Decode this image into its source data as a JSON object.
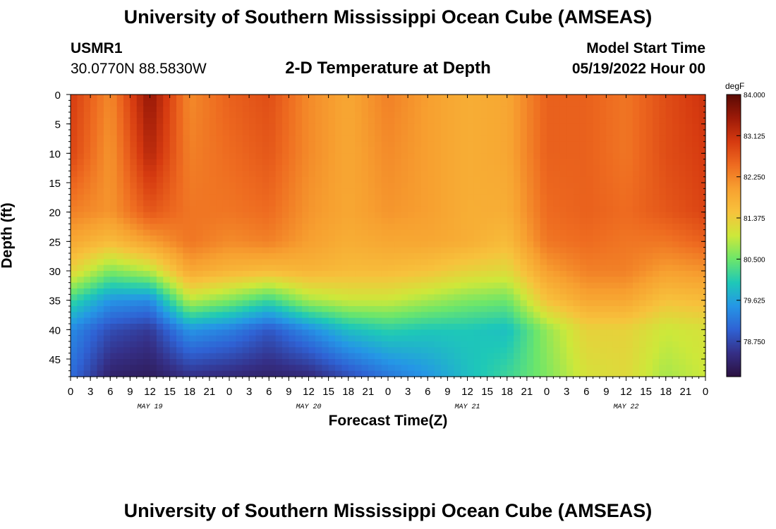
{
  "header": {
    "title": "University of Southern Mississippi Ocean Cube (AMSEAS)",
    "station": "USMR1",
    "location": "30.0770N  88.5830W",
    "subtitle": "2-D Temperature at Depth",
    "model_start_label": "Model Start Time",
    "model_start_value": "05/19/2022 Hour 00"
  },
  "footer": {
    "title": "University of Southern Mississippi Ocean Cube (AMSEAS)"
  },
  "colors": {
    "scale": [
      "#2b1140",
      "#352f86",
      "#2f62d4",
      "#2596e6",
      "#1ec8b8",
      "#6de66a",
      "#cde83a",
      "#f7c23c",
      "#f7a030",
      "#ee6b20",
      "#d63a10",
      "#9c1a08",
      "#5a0a04"
    ]
  },
  "chart_data": {
    "type": "heatmap",
    "title": "2-D Temperature at Depth",
    "xlabel": "Forecast Time(Z)",
    "ylabel": "Depth (ft)",
    "x_tick_labels": [
      "0",
      "3",
      "6",
      "9",
      "12",
      "15",
      "18",
      "21",
      "0",
      "3",
      "6",
      "9",
      "12",
      "15",
      "18",
      "21",
      "0",
      "3",
      "6",
      "9",
      "12",
      "15",
      "18",
      "21",
      "0",
      "3",
      "6",
      "9",
      "12",
      "15",
      "18",
      "21",
      "0"
    ],
    "x_range_hours": [
      0,
      96
    ],
    "day_labels": [
      {
        "label": "MAY 19",
        "hour": 12
      },
      {
        "label": "MAY 20",
        "hour": 36
      },
      {
        "label": "MAY 21",
        "hour": 60
      },
      {
        "label": "MAY 22",
        "hour": 84
      }
    ],
    "y_tick_labels": [
      "0",
      "5",
      "10",
      "15",
      "20",
      "25",
      "30",
      "35",
      "40",
      "45"
    ],
    "y_range_ft": [
      0,
      48
    ],
    "colorbar": {
      "unit": "degF",
      "min": 78.0,
      "max": 84.0,
      "ticks": [
        "84.000",
        "83.125",
        "82.250",
        "81.375",
        "80.500",
        "79.625",
        "78.750"
      ]
    },
    "grid": {
      "time_hours": [
        0,
        6,
        12,
        18,
        24,
        30,
        36,
        42,
        48,
        54,
        60,
        66,
        72,
        78,
        84,
        90,
        96
      ],
      "depths_ft": [
        0,
        10,
        20,
        25,
        30,
        35,
        40,
        48
      ],
      "values_degF": [
        [
          83.0,
          82.2,
          83.6,
          82.2,
          82.6,
          82.8,
          82.2,
          81.9,
          82.3,
          82.0,
          81.8,
          81.9,
          82.6,
          82.6,
          82.4,
          82.8,
          83.1
        ],
        [
          82.9,
          82.1,
          83.3,
          82.3,
          82.5,
          82.7,
          82.2,
          81.9,
          82.2,
          82.0,
          81.8,
          81.9,
          82.6,
          82.6,
          82.4,
          82.8,
          83.0
        ],
        [
          82.3,
          82.1,
          82.7,
          82.4,
          82.4,
          82.5,
          82.1,
          81.9,
          82.1,
          82.0,
          81.8,
          81.8,
          82.5,
          82.6,
          82.5,
          82.7,
          82.9
        ],
        [
          81.9,
          81.6,
          82.0,
          82.4,
          82.2,
          82.3,
          82.0,
          81.8,
          81.9,
          81.9,
          81.8,
          81.6,
          82.4,
          82.5,
          82.4,
          82.4,
          82.6
        ],
        [
          81.3,
          80.6,
          80.9,
          81.9,
          81.7,
          81.6,
          81.7,
          81.6,
          81.6,
          81.5,
          81.3,
          81.2,
          82.0,
          82.3,
          82.3,
          82.0,
          82.1
        ],
        [
          80.2,
          79.5,
          79.4,
          80.9,
          80.6,
          80.2,
          80.8,
          81.0,
          81.0,
          80.8,
          80.6,
          80.5,
          81.5,
          81.9,
          81.9,
          81.5,
          81.6
        ],
        [
          79.4,
          78.8,
          78.6,
          79.5,
          79.3,
          78.9,
          79.4,
          79.9,
          80.1,
          80.0,
          80.0,
          79.9,
          80.7,
          81.3,
          81.3,
          81.0,
          81.1
        ],
        [
          79.1,
          78.3,
          78.2,
          78.5,
          78.4,
          78.3,
          78.4,
          78.8,
          79.2,
          79.5,
          79.9,
          80.2,
          80.6,
          81.1,
          81.2,
          80.8,
          81.0
        ]
      ]
    }
  }
}
